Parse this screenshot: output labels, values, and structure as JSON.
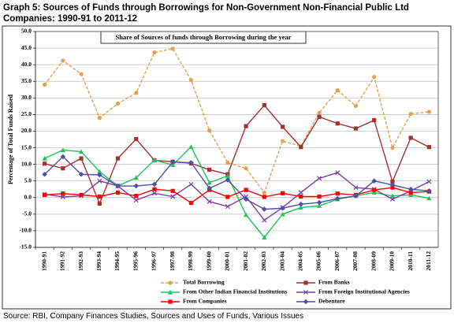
{
  "chart_data": {
    "type": "line",
    "title": "Graph 5: Sources of Funds through Borrowings for Non-Government Non-Financial Public Ltd Companies: 1990-91 to 2011-12",
    "subtitle": "Share of Sources of funds through Borrowing during the year",
    "y_label": "Percentage of Total Funds Raised",
    "source": "Source: RBI, Company Finances Studies, Sources and Uses of Funds, Various Issues",
    "categories": [
      "1990-91",
      "1991-92",
      "1992-93",
      "1993-94",
      "1994-95",
      "1995-96",
      "1996-97",
      "1997-98",
      "1998-99",
      "1999-00",
      "2000-01",
      "2001-02",
      "2002-03",
      "2003-04",
      "2004-05",
      "2005-06",
      "2006-07",
      "2007-08",
      "2008-09",
      "2009-10",
      "2010-11",
      "2011-12"
    ],
    "ylim": [
      -15,
      50
    ],
    "yticks": [
      {
        "value": -15,
        "label": "-15.0"
      },
      {
        "value": -10,
        "label": "-10.0"
      },
      {
        "value": -5,
        "label": "-5.0"
      },
      {
        "value": 0,
        "label": "0.0"
      },
      {
        "value": 5,
        "label": "5.0"
      },
      {
        "value": 10,
        "label": "10.0"
      },
      {
        "value": 15,
        "label": "15.0"
      },
      {
        "value": 20,
        "label": "20.0"
      },
      {
        "value": 25,
        "label": "25.0"
      },
      {
        "value": 30,
        "label": "30.0"
      },
      {
        "value": 35,
        "label": "35.0"
      },
      {
        "value": 40,
        "label": "40.0"
      },
      {
        "value": 45,
        "label": "45.0"
      },
      {
        "value": 50,
        "label": "50.0"
      }
    ],
    "grid": true,
    "series": [
      {
        "name": "Total Borrowing",
        "color": "#e8a04a",
        "marker": "circle",
        "dashed": true,
        "values": [
          34,
          41.2,
          37.2,
          24,
          28.3,
          31.5,
          43.7,
          44.8,
          35.4,
          20.2,
          10.5,
          8.8,
          1.5,
          17,
          15.5,
          25.5,
          32.3,
          27.6,
          36.3,
          15,
          25.2,
          25.8
        ]
      },
      {
        "name": "From Banks",
        "color": "#a5302e",
        "marker": "square",
        "dashed": false,
        "values": [
          10.2,
          8.8,
          11.8,
          -1.8,
          11.8,
          17.6,
          11.2,
          10.8,
          10.3,
          8.4,
          7,
          21.5,
          27.8,
          21.3,
          15.2,
          24.3,
          22.3,
          20.8,
          23.3,
          4.8,
          18,
          15.2
        ]
      },
      {
        "name": "From Other Indian Financial Institutions",
        "color": "#1fc35a",
        "marker": "triangle",
        "dashed": false,
        "values": [
          11.8,
          14.3,
          13.8,
          7.8,
          3.5,
          6,
          11.3,
          9.8,
          15.3,
          4.5,
          6.5,
          -5.2,
          -12,
          -5,
          -3,
          -2.5,
          -0.5,
          0.5,
          1.5,
          0.5,
          0.8,
          -0.2
        ]
      },
      {
        "name": "From Foreign Institutional Agencies",
        "color": "#7a3ea8",
        "marker": "cross",
        "dashed": false,
        "values": [
          1,
          0.2,
          0.5,
          5,
          3.5,
          -0.8,
          1.3,
          0.3,
          4,
          -1.2,
          -2.7,
          0.3,
          -6.8,
          -3,
          1.5,
          5.8,
          7.5,
          3,
          2.5,
          -0.5,
          2,
          4.8
        ]
      },
      {
        "name": "From Companies",
        "color": "#ff0000",
        "marker": "square",
        "dashed": false,
        "values": [
          0.8,
          1.2,
          0.8,
          0.3,
          1.5,
          0.5,
          2.5,
          2,
          -1.6,
          2.3,
          0.2,
          2.3,
          0.2,
          1.3,
          0.3,
          0.3,
          1.2,
          0.8,
          2.3,
          3,
          1.5,
          1.8
        ]
      },
      {
        "name": "Debenture",
        "color": "#4f4fa8",
        "marker": "diamond",
        "dashed": false,
        "values": [
          7,
          12.3,
          7,
          6.8,
          3.5,
          3.5,
          4,
          10.7,
          10.5,
          2.8,
          5.3,
          -0.5,
          -3.5,
          -3.2,
          -2,
          -1.5,
          -0.3,
          0.5,
          5,
          3.8,
          2.5,
          2
        ]
      }
    ]
  }
}
